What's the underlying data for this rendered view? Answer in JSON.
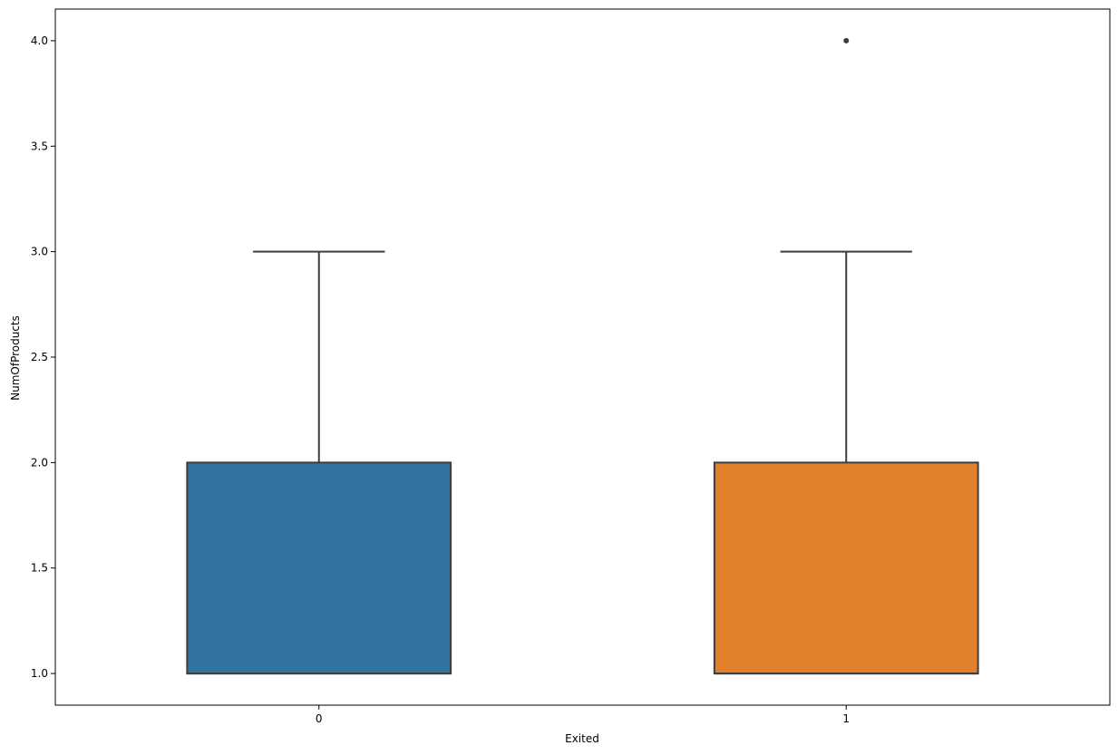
{
  "chart_data": {
    "type": "box",
    "title": "",
    "xlabel": "Exited",
    "ylabel": "NumOfProducts",
    "categories": [
      "0",
      "1"
    ],
    "ylim": [
      0.85,
      4.15
    ],
    "yticks": [
      1.0,
      1.5,
      2.0,
      2.5,
      3.0,
      3.5,
      4.0
    ],
    "ytick_labels": [
      "1.0",
      "1.5",
      "2.0",
      "2.5",
      "3.0",
      "3.5",
      "4.0"
    ],
    "grid": false,
    "legend": "none",
    "boxes": [
      {
        "category": "0",
        "whisker_low": 1.0,
        "q1": 1.0,
        "median": 1.0,
        "q3": 2.0,
        "whisker_high": 3.0,
        "outliers": [],
        "color": "#3274a1"
      },
      {
        "category": "1",
        "whisker_low": 1.0,
        "q1": 1.0,
        "median": 1.0,
        "q3": 2.0,
        "whisker_high": 3.0,
        "outliers": [
          4.0
        ],
        "color": "#e1812c"
      }
    ],
    "edge_color": "#3d3d3d"
  }
}
